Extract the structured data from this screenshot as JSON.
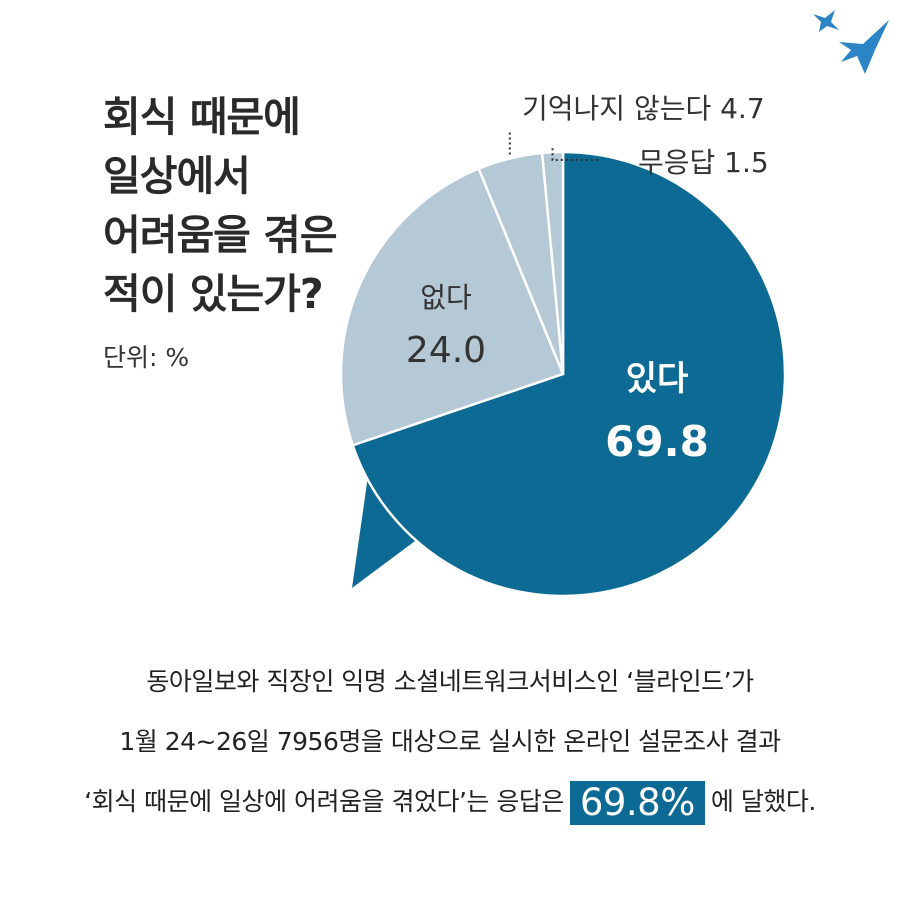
{
  "colors": {
    "main": "#0c6a94",
    "light": "#b4c8d6",
    "bird": "#2c84c4"
  },
  "title_lines": [
    "회식 때문에",
    "일상에서",
    "어려움을 겪은",
    "적이 있는가?"
  ],
  "unit_label": "단위: %",
  "chart_data": {
    "type": "pie",
    "slices": [
      {
        "label": "있다",
        "value": 69.8
      },
      {
        "label": "없다",
        "value": 24.0
      },
      {
        "label": "기억나지 않는다",
        "value": 4.7
      },
      {
        "label": "무응답",
        "value": 1.5
      }
    ]
  },
  "caption": {
    "line1": "동아일보와 직장인 익명 소셜네트워크서비스인 ‘블라인드’가",
    "line2": "1월 24~26일 7956명을 대상으로 실시한 온라인 설문조사 결과",
    "line3_pre": "‘회식 때문에 일상에 어려움을 겪었다’는 응답은",
    "line3_highlight": "69.8%",
    "line3_post": "에 달했다."
  }
}
